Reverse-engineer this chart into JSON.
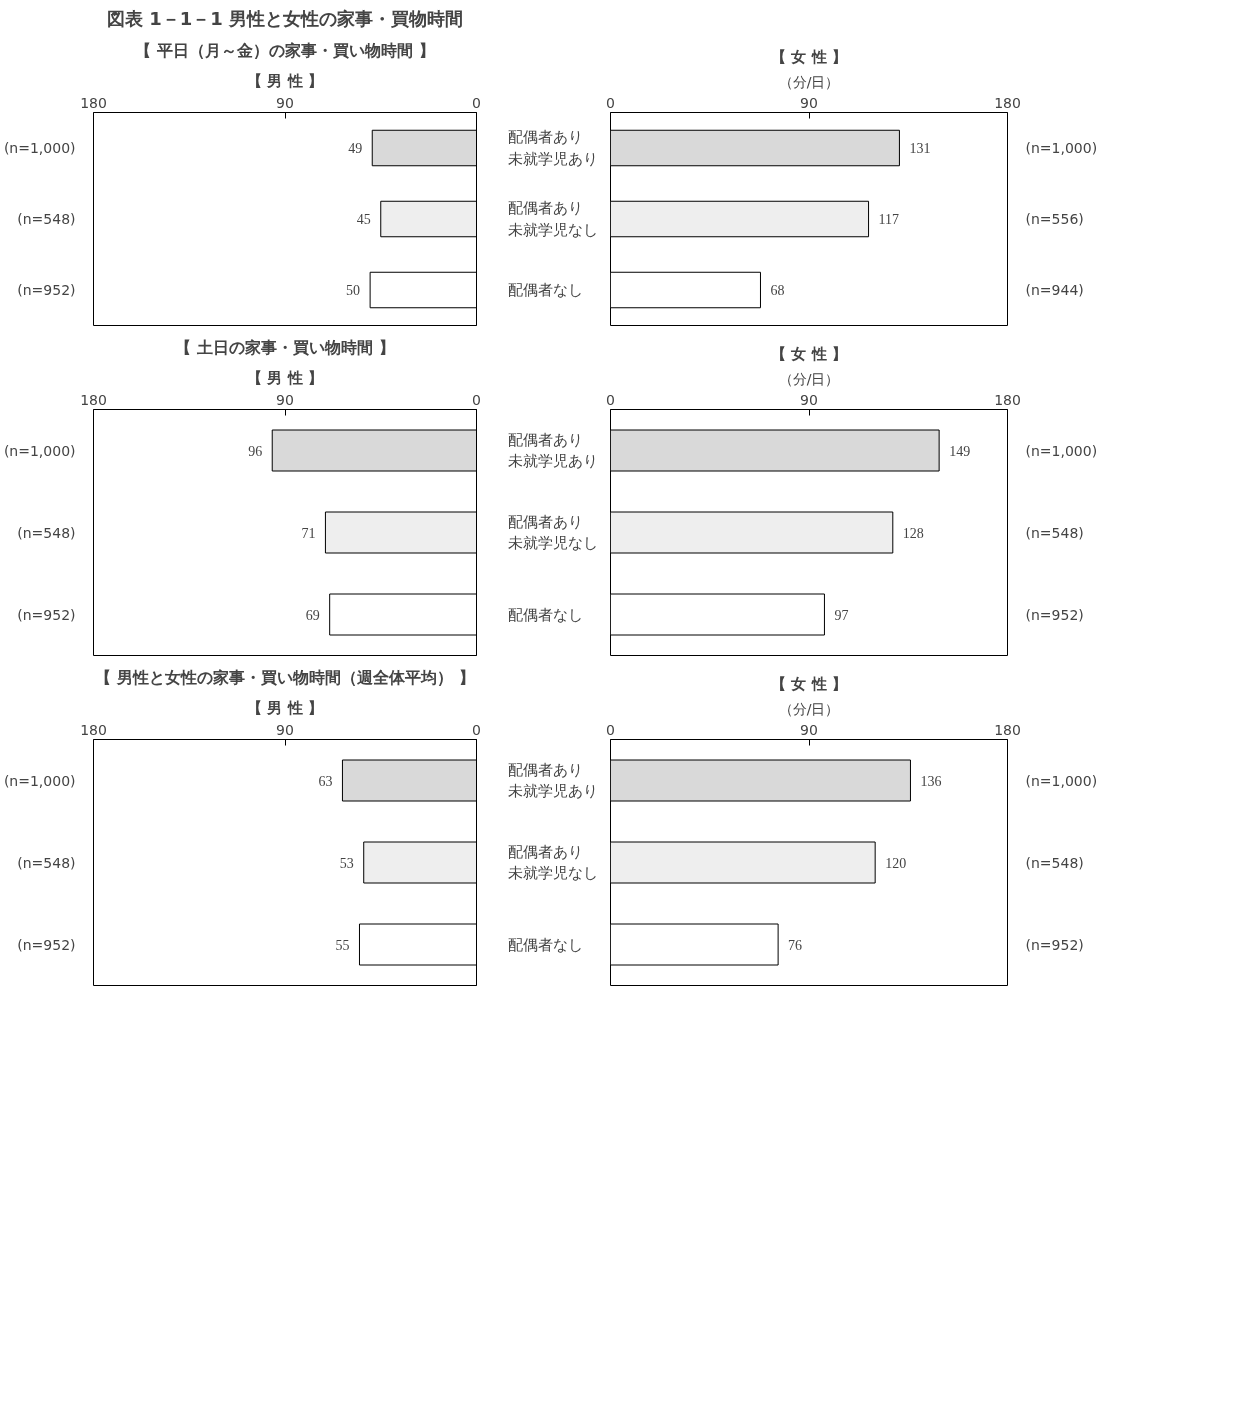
{
  "chart_data": [
    {
      "type": "bar",
      "orientation": "horizontal",
      "title": "図表 1－1－1 男性と女性の家事・買物時間",
      "subtitle": "【 平日（月～金）の家事・買い物時間 】",
      "categories": [
        "配偶者あり未就学児あり",
        "配偶者あり未就学児なし",
        "配偶者なし"
      ],
      "values": [
        49,
        45,
        50
      ],
      "colors": [
        "#d9d9d9",
        "#eeeeee",
        "#ffffff"
      ],
      "xlim": [
        180,
        0
      ],
      "xticks": [
        180,
        90,
        0
      ],
      "data_labels": true,
      "annotations": [
        "【 男 性 】",
        "(n=1,000)",
        "(n=548)",
        "(n=952)"
      ]
    },
    {
      "type": "bar",
      "orientation": "horizontal",
      "categories": [
        "配偶者あり未就学児あり",
        "配偶者あり未就学児なし",
        "配偶者なし"
      ],
      "values": [
        131,
        117,
        68
      ],
      "colors": [
        "#d9d9d9",
        "#eeeeee",
        "#ffffff"
      ],
      "xlim": [
        0,
        180
      ],
      "xticks": [
        0,
        90,
        180
      ],
      "xlabel": "（分/日）",
      "data_labels": true,
      "tick_labels": "x",
      "annotations": [
        "【 女 性 】",
        "(n=1,000)",
        "(n=556)",
        "(n=944)"
      ]
    },
    {
      "type": "bar",
      "orientation": "horizontal",
      "subtitle": "【 土日の家事・買い物時間 】",
      "categories": [
        "配偶者あり未就学児あり",
        "配偶者あり未就学児なし",
        "配偶者なし"
      ],
      "values": [
        96,
        71,
        69
      ],
      "colors": [
        "#d9d9d9",
        "#eeeeee",
        "#ffffff"
      ],
      "xlim": [
        180,
        0
      ],
      "xticks": [
        180,
        90,
        0
      ],
      "data_labels": true,
      "annotations": [
        "【 男 性 】",
        "(n=1,000)",
        "(n=548)",
        "(n=952)"
      ]
    },
    {
      "type": "bar",
      "orientation": "horizontal",
      "categories": [
        "配偶者あり未就学児あり",
        "配偶者あり未就学児なし",
        "配偶者なし"
      ],
      "values": [
        149,
        128,
        97
      ],
      "colors": [
        "#d9d9d9",
        "#eeeeee",
        "#ffffff"
      ],
      "xlim": [
        0,
        180
      ],
      "xticks": [
        0,
        90,
        180
      ],
      "xlabel": "（分/日）",
      "data_labels": true,
      "tick_labels": "x",
      "annotations": [
        "【 女 性 】",
        "(n=1,000)",
        "(n=548)",
        "(n=952)"
      ]
    },
    {
      "type": "bar",
      "orientation": "horizontal",
      "subtitle": "【 男性と女性の家事・買い物時間（週全体平均） 】",
      "categories": [
        "配偶者あり未就学児あり",
        "配偶者あり未就学児なし",
        "配偶者なし"
      ],
      "values": [
        63,
        53,
        55
      ],
      "colors": [
        "#d9d9d9",
        "#eeeeee",
        "#ffffff"
      ],
      "xlim": [
        180,
        0
      ],
      "xticks": [
        180,
        90,
        0
      ],
      "data_labels": true,
      "annotations": [
        "【 男 性 】",
        "(n=1,000)",
        "(n=548)",
        "(n=952)"
      ]
    },
    {
      "type": "bar",
      "orientation": "horizontal",
      "categories": [
        "配偶者あり未就学児あり",
        "配偶者あり未就学児なし",
        "配偶者なし"
      ],
      "values": [
        136,
        120,
        76
      ],
      "colors": [
        "#d9d9d9",
        "#eeeeee",
        "#ffffff"
      ],
      "xlim": [
        0,
        180
      ],
      "xticks": [
        0,
        90,
        180
      ],
      "xlabel": "（分/日）",
      "data_labels": true,
      "tick_labels": "x",
      "annotations": [
        "【 女 性 】",
        "(n=1,000)",
        "(n=548)",
        "(n=952)"
      ]
    }
  ]
}
